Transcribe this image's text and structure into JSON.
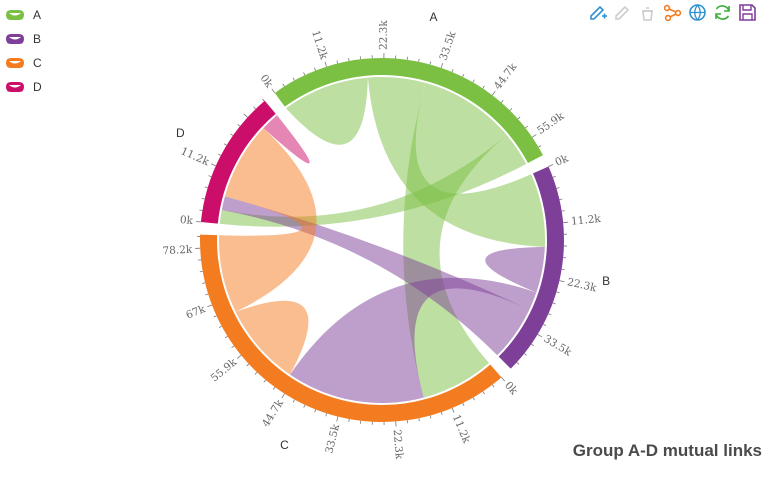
{
  "legend": [
    {
      "name": "A",
      "color": "#7bc043"
    },
    {
      "name": "B",
      "color": "#7e3f98"
    },
    {
      "name": "C",
      "color": "#f47c20"
    },
    {
      "name": "D",
      "color": "#cc0e6b"
    }
  ],
  "toolbox": [
    {
      "icon": "pencil-plus-icon",
      "color": "#2f90d2"
    },
    {
      "icon": "pencil-disabled-icon",
      "color": "#cccccc"
    },
    {
      "icon": "clear-disabled-icon",
      "color": "#cccccc"
    },
    {
      "icon": "graph-nodes-icon",
      "color": "#f47c20"
    },
    {
      "icon": "globe-icon",
      "color": "#2f90d2"
    },
    {
      "icon": "refresh-icon",
      "color": "#3cae3c"
    },
    {
      "icon": "save-icon",
      "color": "#7e3f98"
    }
  ],
  "chart_data": {
    "type": "chord",
    "title": "Group A-D mutual links",
    "groups": [
      {
        "name": "A",
        "color": "#7bc043",
        "total": 60000,
        "ticks": [
          "0k",
          "11.2k",
          "22.3k",
          "33.5k",
          "44.7k",
          "55.9k"
        ]
      },
      {
        "name": "B",
        "color": "#7e3f98",
        "total": 42000,
        "ticks": [
          "0k",
          "11.2k",
          "22.3k",
          "33.5k"
        ]
      },
      {
        "name": "C",
        "color": "#f47c20",
        "total": 81000,
        "ticks": [
          "0k",
          "11.2k",
          "22.3k",
          "33.5k",
          "44.7k",
          "55.9k",
          "67k",
          "78.2k"
        ]
      },
      {
        "name": "D",
        "color": "#cc0e6b",
        "total": 27000,
        "ticks": [
          "0k",
          "11.2k"
        ]
      }
    ],
    "links": [
      {
        "source": "A",
        "target": "A",
        "source_value": 19000,
        "target_value": 0
      },
      {
        "source": "A",
        "target": "B",
        "source_value": 12500,
        "target_value": 16000
      },
      {
        "source": "A",
        "target": "C",
        "source_value": 21000,
        "target_value": 16000
      },
      {
        "source": "A",
        "target": "D",
        "source_value": 7500,
        "target_value": 3000
      },
      {
        "source": "B",
        "target": "B",
        "source_value": 10000,
        "target_value": 0
      },
      {
        "source": "B",
        "target": "C",
        "source_value": 4000,
        "target_value": 30000
      },
      {
        "source": "B",
        "target": "D",
        "source_value": 12000,
        "target_value": 3000
      },
      {
        "source": "C",
        "target": "C",
        "source_value": 18000,
        "target_value": 0
      },
      {
        "source": "C",
        "target": "D",
        "source_value": 17000,
        "target_value": 17000
      },
      {
        "source": "D",
        "target": "D",
        "source_value": 4000,
        "target_value": 0
      }
    ]
  }
}
